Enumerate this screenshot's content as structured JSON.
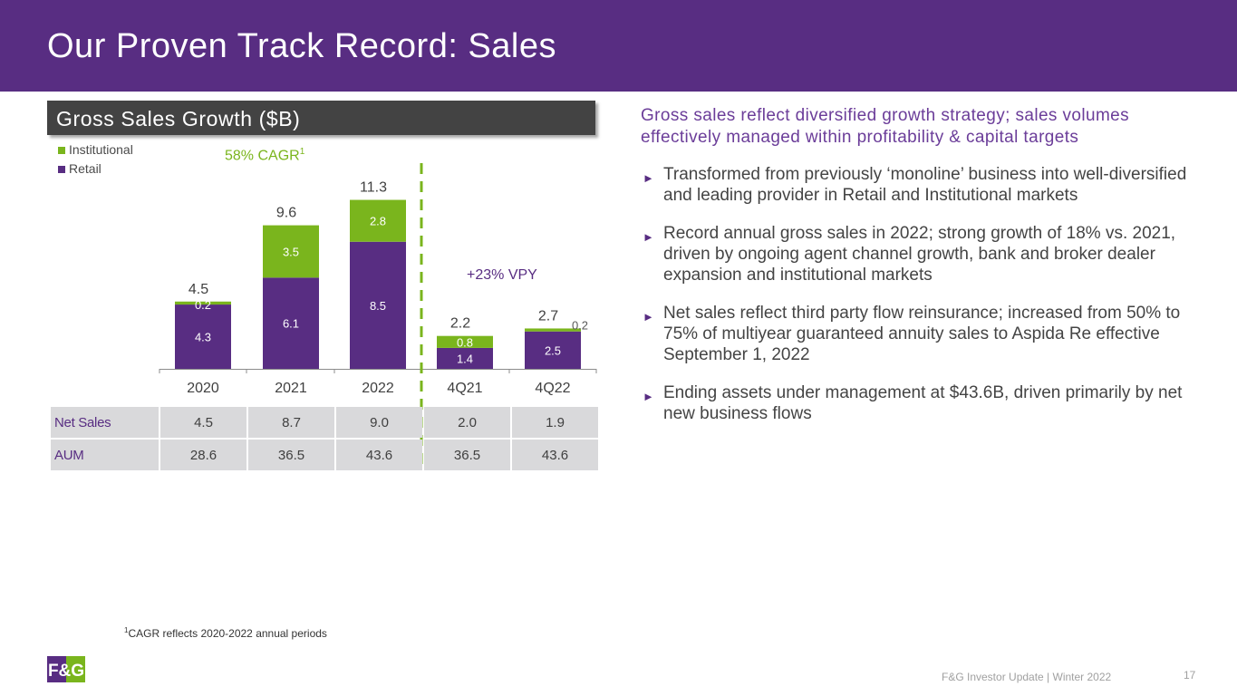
{
  "title": "Our Proven Track Record:  Sales",
  "section_header": "Gross Sales Growth ($B)",
  "cagr": {
    "text": "58% CAGR",
    "superscript": "1"
  },
  "vpy_label": "+23% VPY",
  "colors": {
    "purple": "#582d82",
    "green": "#7ab51d",
    "dark_gray": "#434343",
    "table_gray": "#d9d9db"
  },
  "chart_data": {
    "type": "bar",
    "stacked": true,
    "categories": [
      "2020",
      "2021",
      "2022",
      "4Q21",
      "4Q22"
    ],
    "series": [
      {
        "name": "Retail",
        "values": [
          4.3,
          6.1,
          8.5,
          1.4,
          2.5
        ],
        "labels": [
          "4.3",
          "6.1",
          "8.5",
          "1.4",
          "2.5"
        ]
      },
      {
        "name": "Institutional",
        "values": [
          0.2,
          3.5,
          2.8,
          0.8,
          0.2
        ],
        "labels": [
          "0.2",
          "3.5",
          "2.8",
          "0.8",
          "0.2"
        ]
      }
    ],
    "totals": [
      "4.5",
      "9.6",
      "11.3",
      "2.2",
      "2.7"
    ],
    "legend": [
      "Institutional",
      "Retail"
    ],
    "legend_position": "top-left",
    "ylim": [
      0,
      12
    ],
    "grid": false,
    "title": "Gross Sales Growth ($B)",
    "annotations": [
      "58% CAGR",
      "+23% VPY"
    ],
    "divider_after_category": "2022"
  },
  "table": {
    "rows": [
      {
        "label": "Net Sales",
        "values": [
          "4.5",
          "8.7",
          "9.0",
          "2.0",
          "1.9"
        ]
      },
      {
        "label": "AUM",
        "values": [
          "28.6",
          "36.5",
          "43.6",
          "36.5",
          "43.6"
        ]
      }
    ]
  },
  "headline": "Gross sales reflect diversified growth strategy; sales volumes effectively managed within profitability & capital targets",
  "bullet_glyph": "►",
  "bullets": [
    "Transformed from previously ‘monoline’ business into well-diversified and leading provider in Retail and Institutional markets",
    "Record annual gross sales in 2022; strong growth of 18% vs. 2021, driven by ongoing agent channel growth, bank and broker dealer expansion and institutional markets",
    "Net sales reflect third party flow reinsurance; increased from 50% to 75% of multiyear guaranteed annuity sales to Aspida Re effective September 1, 2022",
    "Ending assets under management at $43.6B, driven primarily by net new business flows"
  ],
  "footnote": {
    "superscript": "1",
    "text": "CAGR reflects 2020-2022 annual periods"
  },
  "logo_text": "F&G",
  "footer": "F&G Investor Update | Winter 2022",
  "page_number": "17"
}
